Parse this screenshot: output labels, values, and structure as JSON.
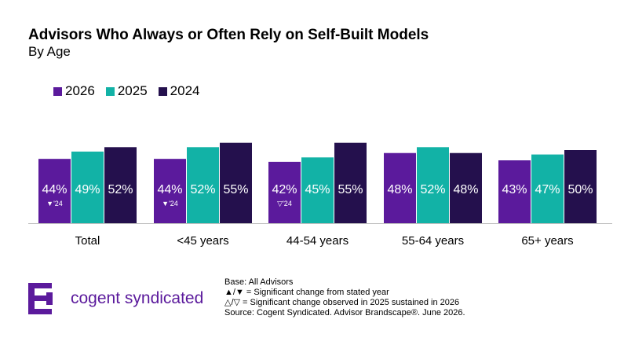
{
  "title": "Advisors Who Always or Often Rely on Self-Built Models",
  "subtitle": "By Age",
  "colors": {
    "2026": "#5b1a9c",
    "2025": "#12b2a6",
    "2024": "#24104d"
  },
  "chart_data": {
    "type": "bar",
    "title": "Advisors Who Always or Often Rely on Self-Built Models",
    "subtitle": "By Age",
    "categories": [
      "Total",
      "<45 years",
      "44-54 years",
      "55-64 years",
      "65+ years"
    ],
    "series": [
      {
        "name": "2026",
        "values": [
          44,
          44,
          42,
          48,
          43
        ]
      },
      {
        "name": "2025",
        "values": [
          49,
          52,
          45,
          52,
          47
        ]
      },
      {
        "name": "2024",
        "values": [
          52,
          55,
          55,
          48,
          50
        ]
      }
    ],
    "value_labels": [
      [
        "44%",
        "49%",
        "52%"
      ],
      [
        "44%",
        "52%",
        "55%"
      ],
      [
        "42%",
        "45%",
        "55%"
      ],
      [
        "48%",
        "52%",
        "48%"
      ],
      [
        "43%",
        "47%",
        "50%"
      ]
    ],
    "significance_labels": [
      "▼'24",
      "▼'24",
      "▽'24",
      "",
      ""
    ],
    "legend_position": "top-left",
    "grid": false,
    "ylim": [
      0,
      100
    ],
    "xlabel": "",
    "ylabel": ""
  },
  "brand": "cogent syndicated",
  "notes": [
    "Base: All Advisors",
    "▲/▼ = Significant change from stated year",
    "△/▽ = Significant change observed in 2025 sustained in 2026",
    "Source: Cogent Syndicated. Advisor Brandscape®. June 2026."
  ]
}
